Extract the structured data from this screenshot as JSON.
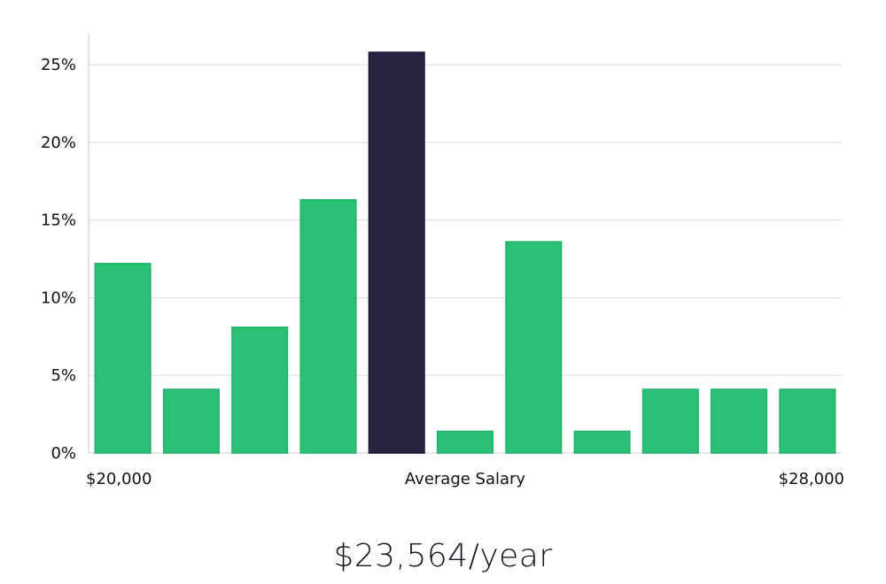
{
  "chart_data": {
    "type": "bar",
    "categories": [
      "1",
      "2",
      "3",
      "4",
      "5",
      "6",
      "7",
      "8",
      "9",
      "10",
      "11"
    ],
    "values": [
      12.2,
      4.1,
      8.1,
      16.3,
      25.8,
      1.4,
      13.6,
      1.4,
      4.1,
      4.1,
      4.1
    ],
    "highlight_index": 4,
    "ylim": [
      0,
      27
    ],
    "yticks": [
      0,
      5,
      10,
      15,
      20,
      25
    ],
    "ytick_labels": [
      "0%",
      "5%",
      "10%",
      "15%",
      "20%",
      "25%"
    ],
    "x_labels": {
      "left": "$20,000",
      "center": "Average Salary",
      "right": "$28,000"
    },
    "grid": true,
    "colors": {
      "bar": "#2bbf77",
      "highlight": "#28243f",
      "grid": "#dddddd",
      "axis": "#cccccc"
    }
  },
  "salary_summary": "$23,564/year"
}
